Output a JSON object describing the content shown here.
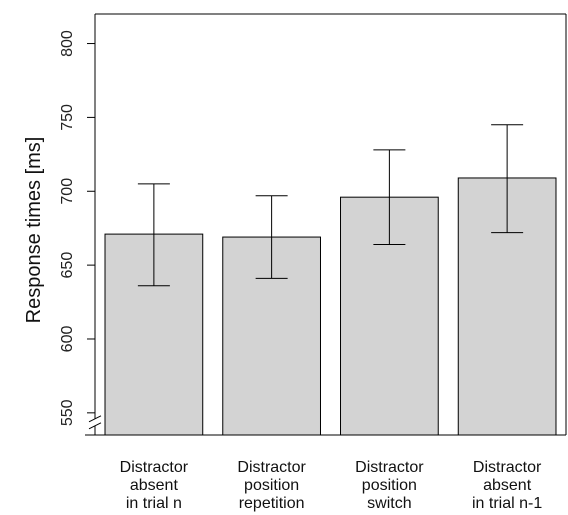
{
  "chart_data": {
    "type": "bar",
    "title": "",
    "xlabel": "",
    "ylabel": "Response times [ms]",
    "ylim": [
      535,
      820
    ],
    "axis_break": 550,
    "yticks": [
      "550",
      "600",
      "650",
      "700",
      "750",
      "800"
    ],
    "grid": false,
    "categories": [
      [
        "Distractor",
        "absent",
        "in trial n"
      ],
      [
        "Distractor",
        "position",
        "repetition"
      ],
      [
        "Distractor",
        "position",
        "switch"
      ],
      [
        "Distractor",
        "absent",
        "in trial n-1"
      ]
    ],
    "values": [
      671,
      669,
      696,
      709
    ],
    "error_low": [
      636,
      641,
      664,
      672
    ],
    "error_high": [
      705,
      697,
      728,
      745
    ],
    "colors": {
      "bar_fill": "#d3d3d3",
      "bar_stroke": "#000000",
      "axis": "#000000"
    }
  }
}
